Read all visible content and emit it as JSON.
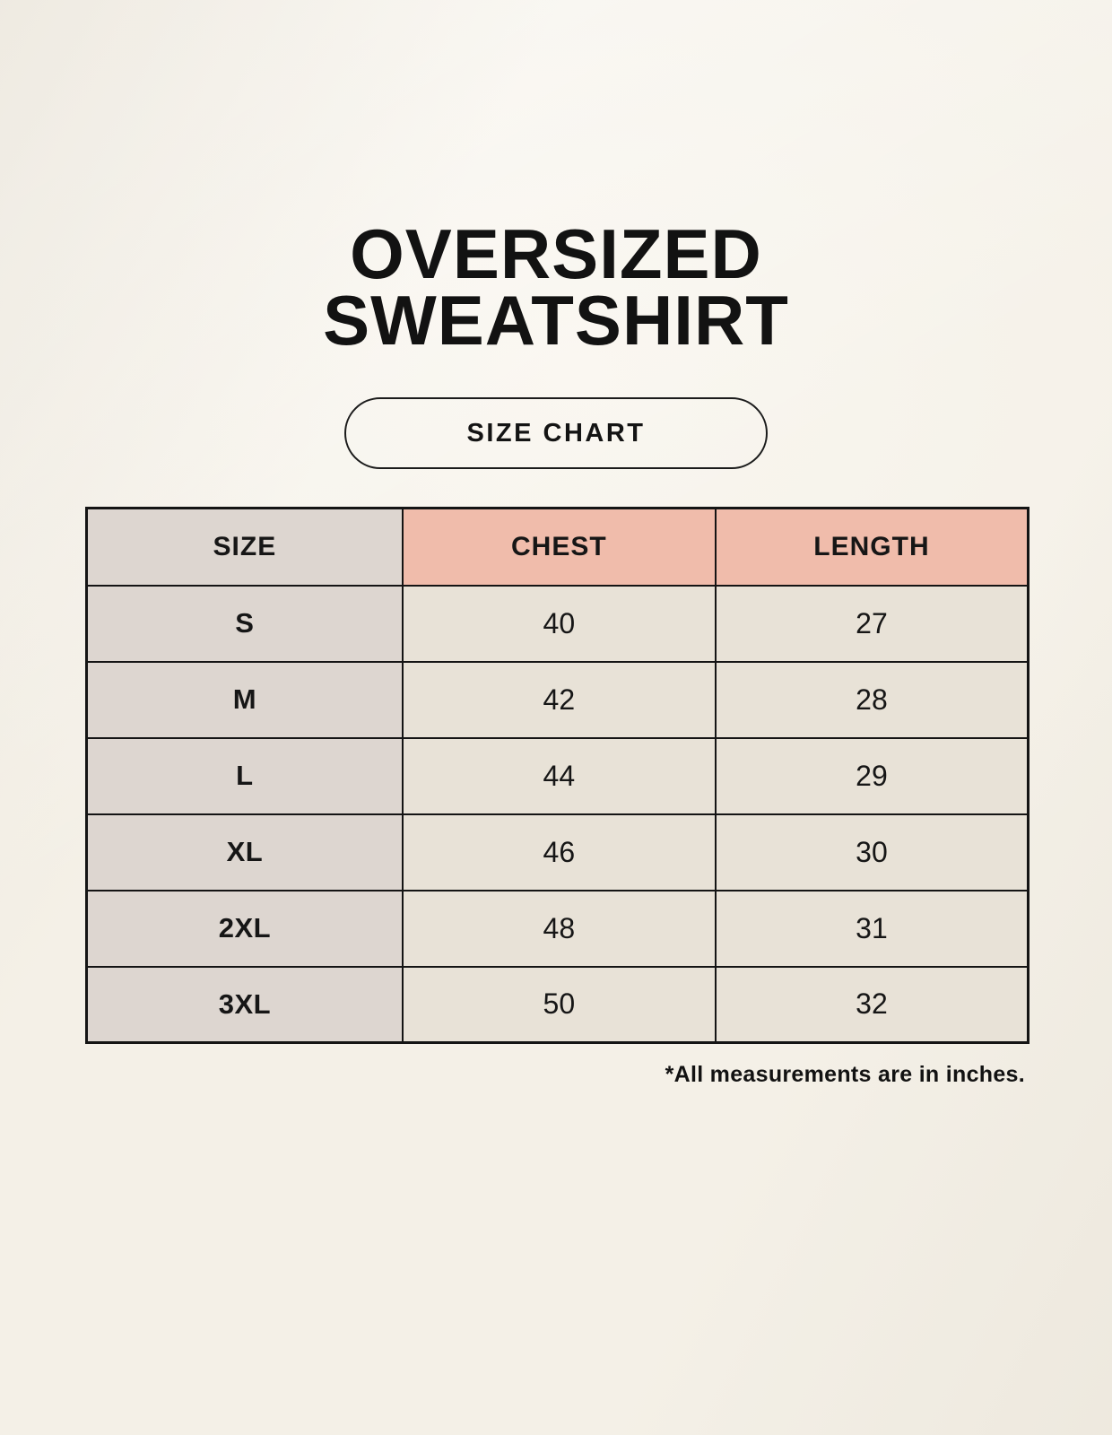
{
  "header": {
    "title_line1": "OVERSIZED",
    "title_line2": "SWEATSHIRT",
    "size_chart_button_label": "SIZE CHART"
  },
  "chart_data": {
    "type": "table",
    "title": "OVERSIZED SWEATSHIRT",
    "subtitle": "SIZE CHART",
    "columns": [
      "SIZE",
      "CHEST",
      "LENGTH"
    ],
    "rows": [
      [
        "S",
        "40",
        "27"
      ],
      [
        "M",
        "42",
        "28"
      ],
      [
        "L",
        "44",
        "29"
      ],
      [
        "XL",
        "46",
        "30"
      ],
      [
        "2XL",
        "48",
        "31"
      ],
      [
        "3XL",
        "50",
        "32"
      ]
    ],
    "footnote": "*All measurements are in inches.",
    "units": "inches",
    "layout_hints": {
      "header_row_highlighted": true,
      "size_column_shaded": true
    }
  },
  "colors": {
    "page_background": "#f4f0e7",
    "size_column_bg": "#ddd6d0",
    "measure_header_bg": "#f0bcab",
    "measure_cell_bg": "#e8e2d7",
    "table_border": "#141414",
    "text": "#161616"
  }
}
